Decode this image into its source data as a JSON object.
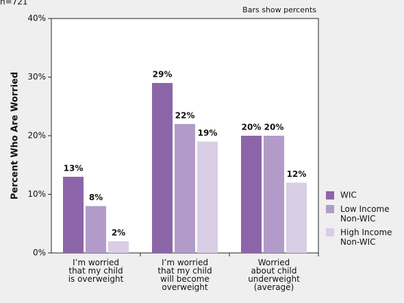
{
  "chart_data": {
    "type": "bar",
    "note": "n=721",
    "annotation": "Bars show percents",
    "y_label": "Percent Who Are Worried",
    "categories": [
      "I’m worried\nthat my child\nis overweight",
      "I’m worried\nthat my child\nwill become\noverweight",
      "Worried\nabout child\nunderweight\n(average)"
    ],
    "series": [
      {
        "name": "WIC",
        "color": "#8c65a8",
        "values": [
          13,
          29,
          20
        ],
        "value_labels": [
          "13%",
          "29%",
          "20%"
        ]
      },
      {
        "name": "Low Income\nNon-WIC",
        "color": "#b29bc9",
        "values": [
          8,
          22,
          20
        ],
        "value_labels": [
          "8%",
          "22%",
          "20%"
        ]
      },
      {
        "name": "High Income\nNon-WIC",
        "color": "#d9cee5",
        "values": [
          2,
          19,
          12
        ],
        "value_labels": [
          "2%",
          "19%",
          "12%"
        ]
      }
    ],
    "ylim": [
      0,
      40
    ],
    "yticks": [
      {
        "value": 0,
        "label": "0%"
      },
      {
        "value": 10,
        "label": "10%"
      },
      {
        "value": 20,
        "label": "20%"
      },
      {
        "value": 30,
        "label": "30%"
      },
      {
        "value": 40,
        "label": "40%"
      }
    ]
  }
}
